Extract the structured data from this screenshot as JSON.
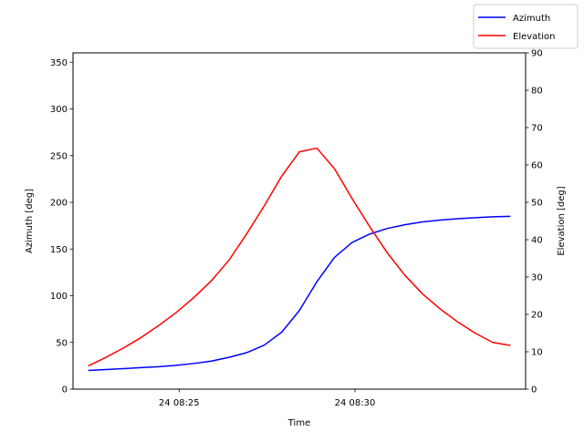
{
  "chart_data": {
    "type": "line",
    "xlabel": "Time",
    "ylabel_left": "Azimuth [deg]",
    "ylabel_right": "Elevation [deg]",
    "x_ticks": [
      "24 08:25",
      "24 08:30"
    ],
    "y_left_ticks": [
      "0",
      "50",
      "100",
      "150",
      "200",
      "250",
      "300",
      "350"
    ],
    "y_right_ticks": [
      "0",
      "10",
      "20",
      "30",
      "40",
      "50",
      "60",
      "70",
      "80",
      "90"
    ],
    "ylim_left": [
      0,
      360
    ],
    "ylim_right": [
      0,
      90
    ],
    "legend_position": "top-right",
    "grid": false,
    "x": [
      "08:22:25",
      "08:22:55",
      "08:23:25",
      "08:23:55",
      "08:24:25",
      "08:24:55",
      "08:25:25",
      "08:25:55",
      "08:26:25",
      "08:26:55",
      "08:27:25",
      "08:27:55",
      "08:28:25",
      "08:28:55",
      "08:29:25",
      "08:29:55",
      "08:30:25",
      "08:30:55",
      "08:31:25",
      "08:31:55",
      "08:32:25",
      "08:32:55",
      "08:33:25",
      "08:33:55",
      "08:34:25"
    ],
    "series": [
      {
        "name": "Azimuth",
        "axis": "left",
        "color": "#0000ff",
        "values": [
          20,
          21,
          22,
          23,
          24,
          25.5,
          27.5,
          30,
          34,
          39,
          47,
          61,
          84,
          115,
          141,
          157,
          166,
          172,
          176,
          179,
          181,
          182.5,
          183.5,
          184.5,
          185
        ]
      },
      {
        "name": "Elevation",
        "axis": "right",
        "color": "#ff0000",
        "values": [
          6.2,
          8.5,
          11,
          13.8,
          17,
          20.5,
          24.5,
          29,
          34.5,
          41.5,
          49,
          57,
          63.5,
          64.5,
          59,
          51,
          43.5,
          36.5,
          30.5,
          25.5,
          21.5,
          18,
          15,
          12.5,
          11.7
        ]
      }
    ]
  }
}
